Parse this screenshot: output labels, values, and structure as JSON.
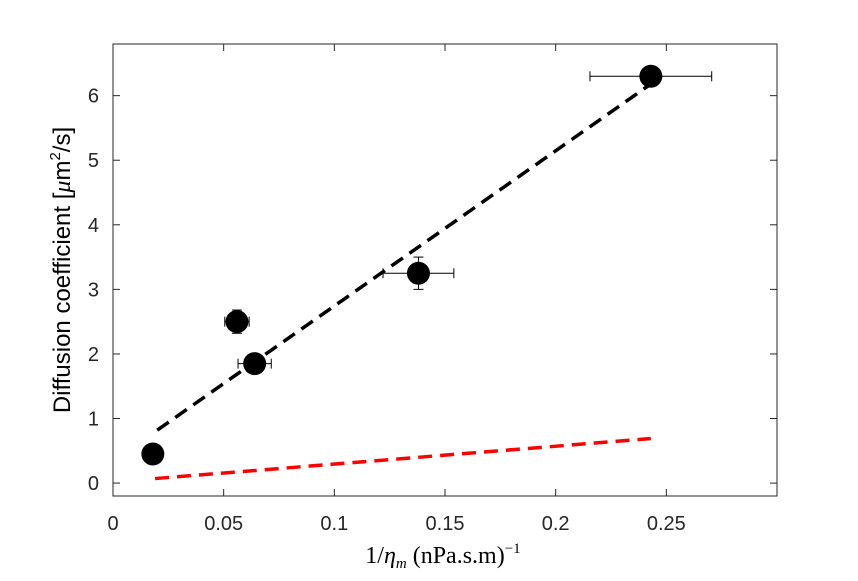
{
  "chart_data": {
    "type": "scatter",
    "xlabel": {
      "prefix": "1/",
      "symbol": "η",
      "subscript": "m",
      "unit": " (nPa.s.m)",
      "exponent": "−1"
    },
    "ylabel": {
      "text": "Diffusion coefficient  [",
      "mu": "μ",
      "unit": "m",
      "exponent": "2",
      "suffix": "/s]"
    },
    "xlim": [
      0,
      0.3
    ],
    "ylim": [
      -0.2,
      6.8
    ],
    "xticks": [
      0,
      0.05,
      0.1,
      0.15,
      0.2,
      0.25
    ],
    "xtick_labels": [
      "0",
      "0.05",
      "0.1",
      "0.15",
      "0.2",
      "0.25"
    ],
    "yticks": [
      0,
      1,
      2,
      3,
      4,
      5,
      6
    ],
    "ytick_labels": [
      "0",
      "1",
      "2",
      "3",
      "4",
      "5",
      "6"
    ],
    "grid": false,
    "legend": "none",
    "series": [
      {
        "type": "scatter",
        "color": "#000000",
        "points": [
          {
            "x": 0.018,
            "y": 0.45,
            "xerr": 0.0,
            "yerr": 0.0
          },
          {
            "x": 0.056,
            "y": 2.5,
            "xerr": 0.0055,
            "yerr": 0.18
          },
          {
            "x": 0.064,
            "y": 1.85,
            "xerr": 0.0075,
            "yerr": 0.12
          },
          {
            "x": 0.138,
            "y": 3.25,
            "xerr": 0.016,
            "yerr": 0.25
          },
          {
            "x": 0.243,
            "y": 6.3,
            "xerr": 0.0275,
            "yerr": 0.0
          }
        ]
      },
      {
        "type": "line",
        "style": "dashed",
        "color": "#000000",
        "x": [
          0.02,
          0.243
        ],
        "y": [
          0.82,
          6.18
        ]
      },
      {
        "type": "line",
        "style": "dashed",
        "color": "#ff0000",
        "x": [
          0.019,
          0.243
        ],
        "y": [
          0.07,
          0.69
        ]
      }
    ]
  }
}
